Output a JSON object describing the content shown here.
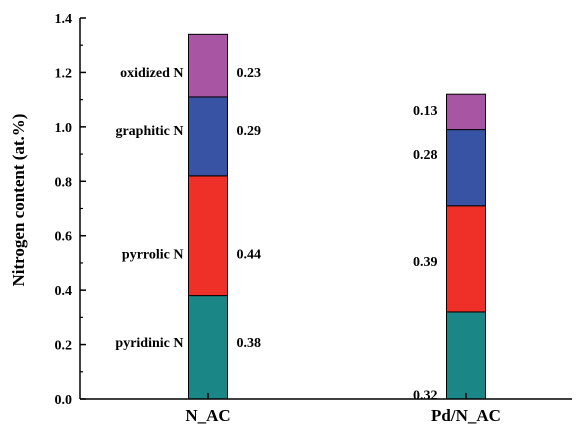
{
  "chart_data": {
    "type": "bar",
    "stacked": true,
    "categories": [
      "N_AC",
      "Pd/N_AC"
    ],
    "series": [
      {
        "name": "pyridinic N",
        "values": [
          0.38,
          0.32
        ],
        "color": "#1b8686"
      },
      {
        "name": "pyrrolic N",
        "values": [
          0.44,
          0.39
        ],
        "color": "#ee3028"
      },
      {
        "name": "graphitic N",
        "values": [
          0.29,
          0.28
        ],
        "color": "#3953a4"
      },
      {
        "name": "oxidized N",
        "values": [
          0.23,
          0.13
        ],
        "color": "#a856a4"
      }
    ],
    "value_labels": [
      [
        "0.38",
        "0.44",
        "0.29",
        "0.23"
      ],
      [
        "0.32",
        "0.39",
        "0.28",
        "0.13"
      ]
    ],
    "title": "",
    "xlabel": "",
    "ylabel": "Nitrogen content (at.%)",
    "ylim": [
      0,
      1.4
    ],
    "yticks": [
      "0.0",
      "0.2",
      "0.4",
      "0.6",
      "0.8",
      "1.0",
      "1.2",
      "1.4"
    ],
    "grid": false,
    "legend": "inline-labels"
  }
}
